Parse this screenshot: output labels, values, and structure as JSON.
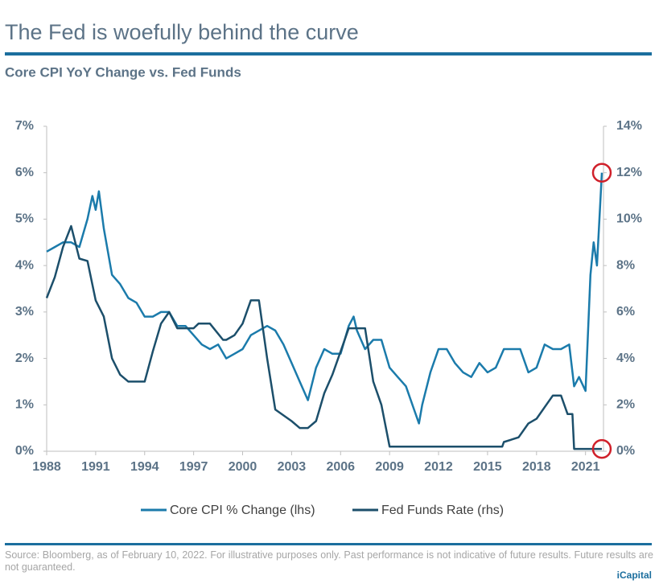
{
  "chart_data": {
    "type": "line",
    "title": "The Fed is woefully behind the curve",
    "subtitle": "Core CPI YoY Change vs. Fed Funds",
    "source": "Source: Bloomberg, as of February 10, 2022. For illustrative purposes only. Past performance is not indicative of future results. Future results are not guaranteed.",
    "brand": "iCapital",
    "xlim": [
      1988,
      2022.1
    ],
    "xticks": [
      1988,
      1991,
      1994,
      1997,
      2000,
      2003,
      2006,
      2009,
      2012,
      2015,
      2018,
      2021
    ],
    "ylim": [
      0,
      7
    ],
    "yticks": [
      {
        "value": 0,
        "label": "0%"
      },
      {
        "value": 1,
        "label": "1%"
      },
      {
        "value": 2,
        "label": "2%"
      },
      {
        "value": 3,
        "label": "3%"
      },
      {
        "value": 4,
        "label": "4%"
      },
      {
        "value": 5,
        "label": "5%"
      },
      {
        "value": 6,
        "label": "6%"
      },
      {
        "value": 7,
        "label": "7%"
      }
    ],
    "y2lim": [
      0,
      14
    ],
    "y2ticks": [
      {
        "value": 0,
        "label": "0%"
      },
      {
        "value": 2,
        "label": "2%"
      },
      {
        "value": 4,
        "label": "4%"
      },
      {
        "value": 6,
        "label": "6%"
      },
      {
        "value": 8,
        "label": "8%"
      },
      {
        "value": 10,
        "label": "10%"
      },
      {
        "value": 12,
        "label": "12%"
      },
      {
        "value": 14,
        "label": "14%"
      }
    ],
    "legend": "bottom",
    "series": [
      {
        "name": "Core CPI % Change (lhs)",
        "color": "#1b7bab",
        "axis": "y",
        "x": [
          1988,
          1988.5,
          1989,
          1989.5,
          1990,
          1990.5,
          1990.8,
          1991,
          1991.2,
          1991.5,
          1992,
          1992.5,
          1993,
          1993.5,
          1994,
          1994.5,
          1995,
          1995.5,
          1996,
          1996.5,
          1997,
          1997.5,
          1998,
          1998.5,
          1999,
          1999.5,
          2000,
          2000.5,
          2001,
          2001.5,
          2002,
          2002.5,
          2003,
          2003.5,
          2004,
          2004.5,
          2005,
          2005.5,
          2006,
          2006.5,
          2006.8,
          2007,
          2007.5,
          2008,
          2008.5,
          2009,
          2009.5,
          2010,
          2010.5,
          2010.8,
          2011,
          2011.5,
          2012,
          2012.5,
          2013,
          2013.5,
          2014,
          2014.5,
          2015,
          2015.5,
          2016,
          2016.5,
          2017,
          2017.5,
          2018,
          2018.5,
          2019,
          2019.5,
          2020,
          2020.3,
          2020.6,
          2021,
          2021.3,
          2021.5,
          2021.7,
          2022
        ],
        "values": [
          4.3,
          4.4,
          4.5,
          4.5,
          4.4,
          5.0,
          5.5,
          5.2,
          5.6,
          4.8,
          3.8,
          3.6,
          3.3,
          3.2,
          2.9,
          2.9,
          3.0,
          3.0,
          2.7,
          2.7,
          2.5,
          2.3,
          2.2,
          2.3,
          2.0,
          2.1,
          2.2,
          2.5,
          2.6,
          2.7,
          2.6,
          2.3,
          1.9,
          1.5,
          1.1,
          1.8,
          2.2,
          2.1,
          2.1,
          2.7,
          2.9,
          2.6,
          2.2,
          2.4,
          2.4,
          1.8,
          1.6,
          1.4,
          0.9,
          0.6,
          1.0,
          1.7,
          2.2,
          2.2,
          1.9,
          1.7,
          1.6,
          1.9,
          1.7,
          1.8,
          2.2,
          2.2,
          2.2,
          1.7,
          1.8,
          2.3,
          2.2,
          2.2,
          2.3,
          1.4,
          1.6,
          1.3,
          3.8,
          4.5,
          4.0,
          6.0
        ]
      },
      {
        "name": "Fed Funds Rate (rhs)",
        "color": "#1c4f6b",
        "axis": "y2",
        "x": [
          1988,
          1988.5,
          1989,
          1989.5,
          1990,
          1990.5,
          1991,
          1991.5,
          1992,
          1992.5,
          1993,
          1994,
          1994.5,
          1995,
          1995.5,
          1996,
          1997,
          1997.3,
          1998,
          1998.8,
          1999,
          1999.5,
          2000,
          2000.5,
          2001,
          2001.5,
          2002,
          2003,
          2003.5,
          2004,
          2004.5,
          2005,
          2005.5,
          2006,
          2006.5,
          2007,
          2007.5,
          2008,
          2008.5,
          2009,
          2015.9,
          2016,
          2016.9,
          2017.5,
          2018,
          2018.5,
          2019,
          2019.5,
          2019.9,
          2020.2,
          2020.3,
          2022
        ],
        "values": [
          6.6,
          7.5,
          8.8,
          9.7,
          8.3,
          8.2,
          6.5,
          5.8,
          4.0,
          3.3,
          3.0,
          3.0,
          4.3,
          5.5,
          6.0,
          5.3,
          5.3,
          5.5,
          5.5,
          4.8,
          4.8,
          5.0,
          5.5,
          6.5,
          6.5,
          4.0,
          1.8,
          1.3,
          1.0,
          1.0,
          1.3,
          2.5,
          3.3,
          4.3,
          5.3,
          5.3,
          5.3,
          3.0,
          2.0,
          0.2,
          0.2,
          0.4,
          0.6,
          1.2,
          1.4,
          1.9,
          2.4,
          2.4,
          1.6,
          1.6,
          0.1,
          0.1
        ]
      }
    ]
  }
}
